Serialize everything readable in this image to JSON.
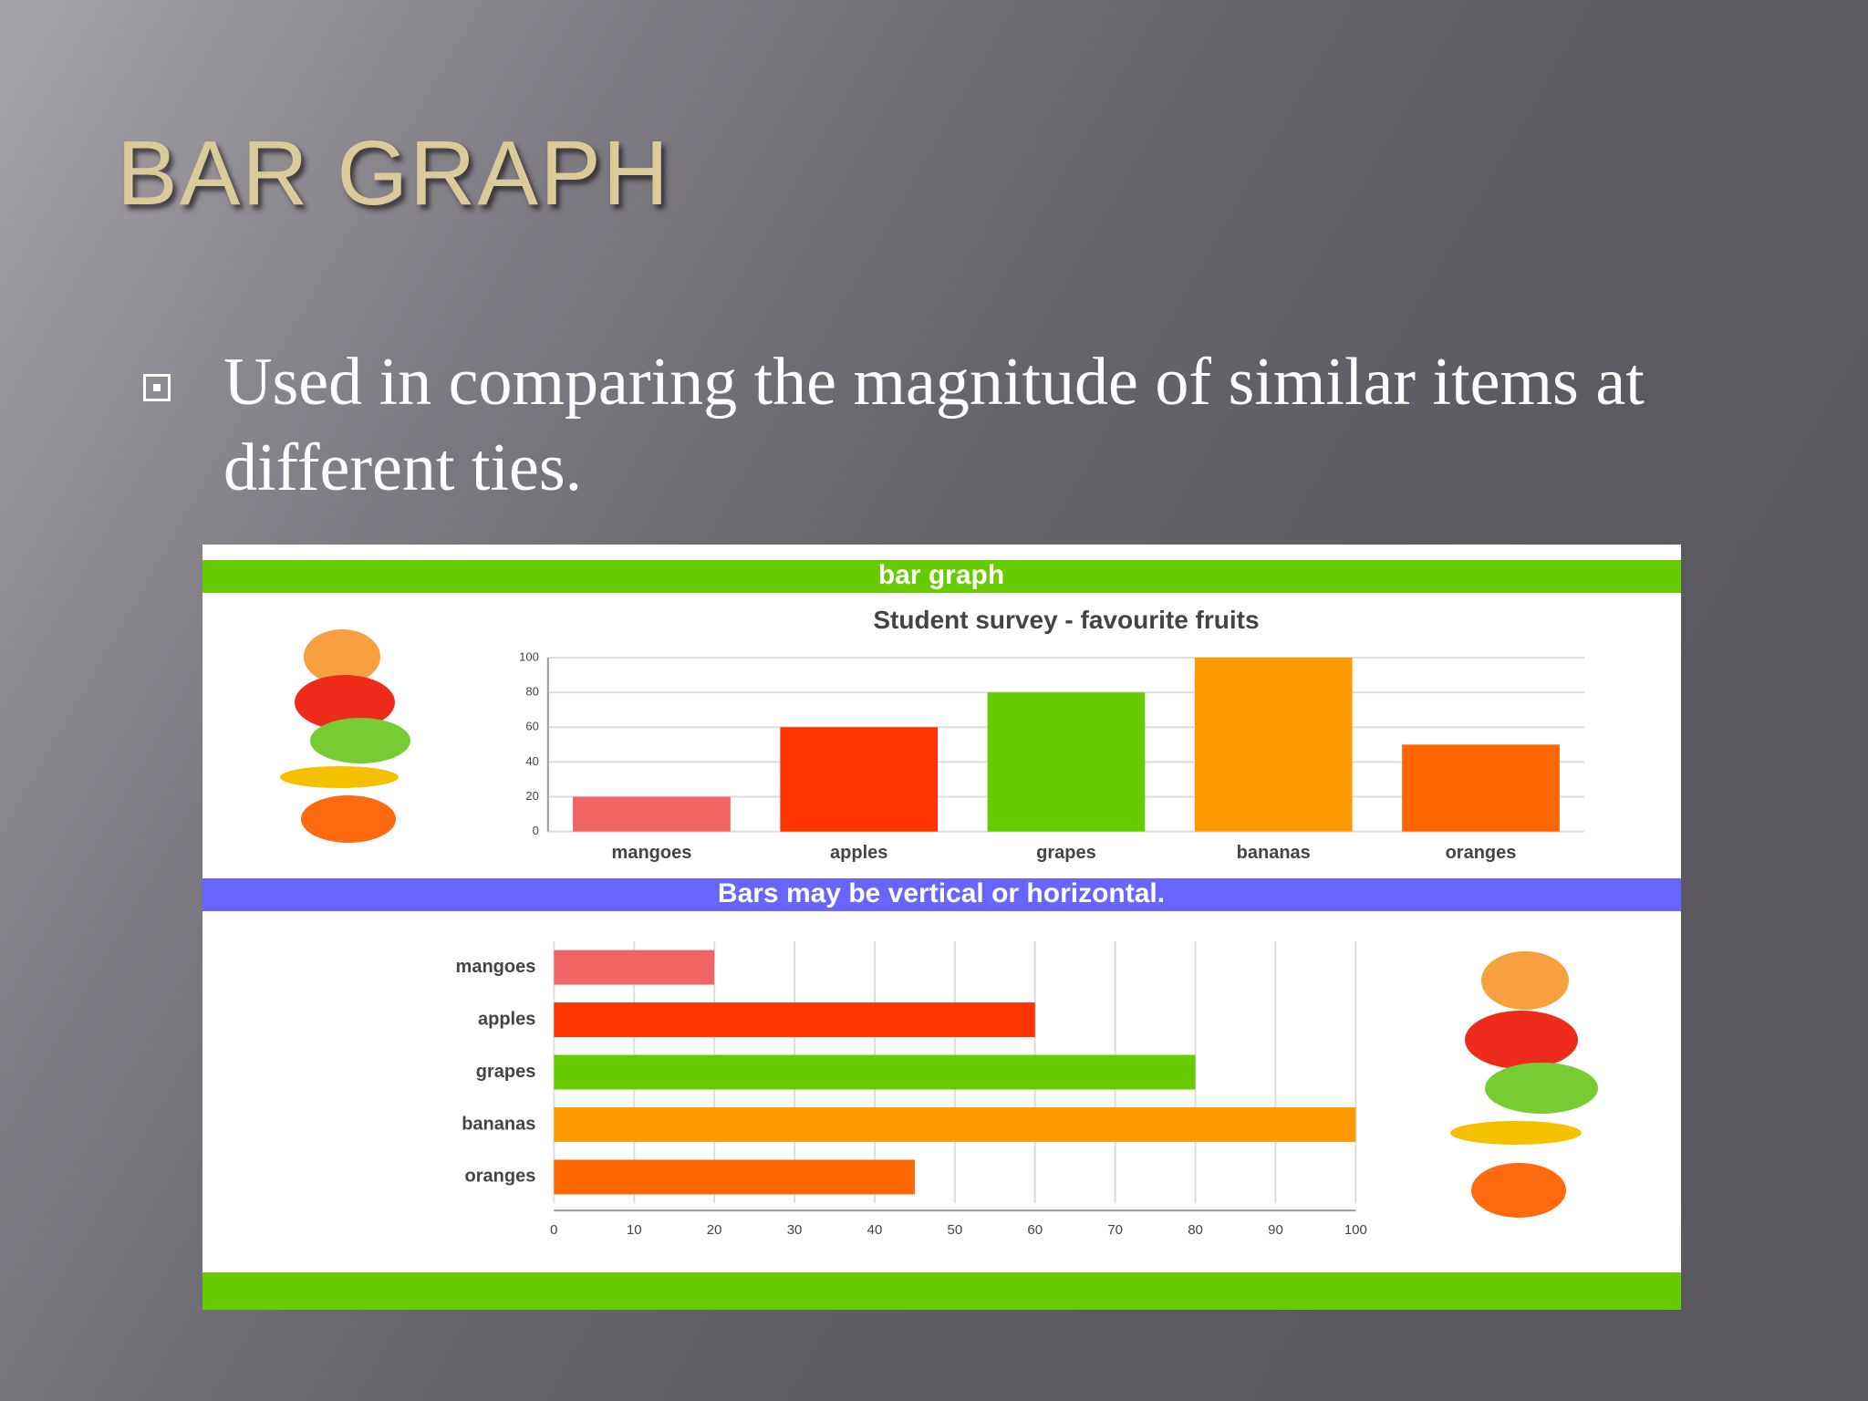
{
  "slide": {
    "title": "BAR GRAPH",
    "bullets": [
      "Used in comparing the magnitude of similar items at different ties."
    ]
  },
  "image": {
    "header": "bar graph",
    "caption": "Bars may be vertical or horizontal."
  },
  "chart_data": [
    {
      "type": "bar",
      "orientation": "vertical",
      "title": "Student survey - favourite fruits",
      "categories": [
        "mangoes",
        "apples",
        "grapes",
        "bananas",
        "oranges"
      ],
      "values": [
        20,
        60,
        80,
        100,
        50
      ],
      "colors": [
        "#f26363",
        "#ff3300",
        "#66cc00",
        "#ff9900",
        "#ff6600"
      ],
      "ylim": [
        0,
        100
      ],
      "yticks": [
        0,
        20,
        40,
        60,
        80,
        100
      ],
      "grid": true
    },
    {
      "type": "bar",
      "orientation": "horizontal",
      "categories": [
        "mangoes",
        "apples",
        "grapes",
        "bananas",
        "oranges"
      ],
      "values": [
        20,
        60,
        80,
        100,
        45
      ],
      "colors": [
        "#f26363",
        "#ff3300",
        "#66cc00",
        "#ff9900",
        "#ff6600"
      ],
      "xlim": [
        0,
        100
      ],
      "xticks": [
        0,
        10,
        20,
        30,
        40,
        50,
        60,
        70,
        80,
        90,
        100
      ],
      "grid": true
    }
  ]
}
